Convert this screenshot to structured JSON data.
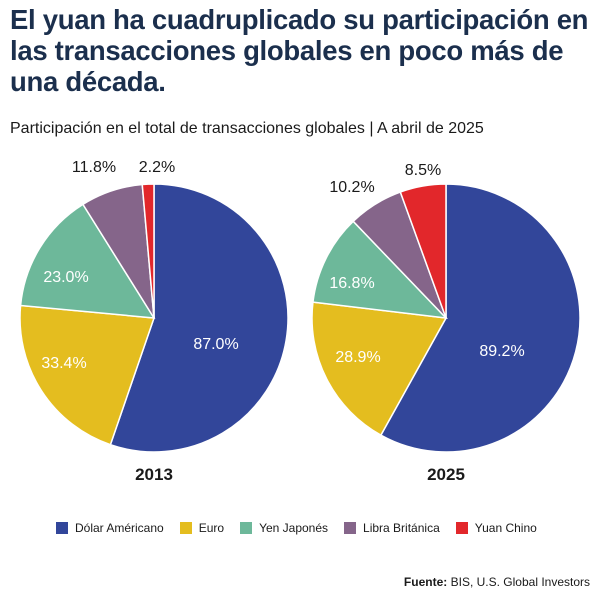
{
  "header": {
    "title": "El yuan ha cuadruplicado su participación en las transacciones globales en poco más de una década.",
    "subtitle": "Participación en el total de transacciones globales | A abril de 2025"
  },
  "source": {
    "label": "Fuente:",
    "text": "BIS, U.S. Global Investors"
  },
  "chart_data": [
    {
      "type": "pie",
      "year_label": "2013",
      "categories": [
        "Dólar Américano",
        "Euro",
        "Yen Japonés",
        "Libra Británica",
        "Yuan Chino"
      ],
      "values": [
        87.0,
        33.4,
        23.0,
        11.8,
        2.2
      ],
      "labels": [
        "87.0%",
        "33.4%",
        "23.0%",
        "11.8%",
        "2.2%"
      ]
    },
    {
      "type": "pie",
      "year_label": "2025",
      "categories": [
        "Dólar Américano",
        "Euro",
        "Yen Japonés",
        "Libra Británica",
        "Yuan Chino"
      ],
      "values": [
        89.2,
        28.9,
        16.8,
        10.2,
        8.5
      ],
      "labels": [
        "89.2%",
        "28.9%",
        "16.8%",
        "10.2%",
        "8.5%"
      ]
    }
  ],
  "legend": {
    "items": [
      {
        "label": "Dólar Américano",
        "color": "#32469a"
      },
      {
        "label": "Euro",
        "color": "#e4bd1f"
      },
      {
        "label": "Yen Japonés",
        "color": "#6db89a"
      },
      {
        "label": "Libra Británica",
        "color": "#85658a"
      },
      {
        "label": "Yuan Chino",
        "color": "#e2272b"
      }
    ]
  }
}
